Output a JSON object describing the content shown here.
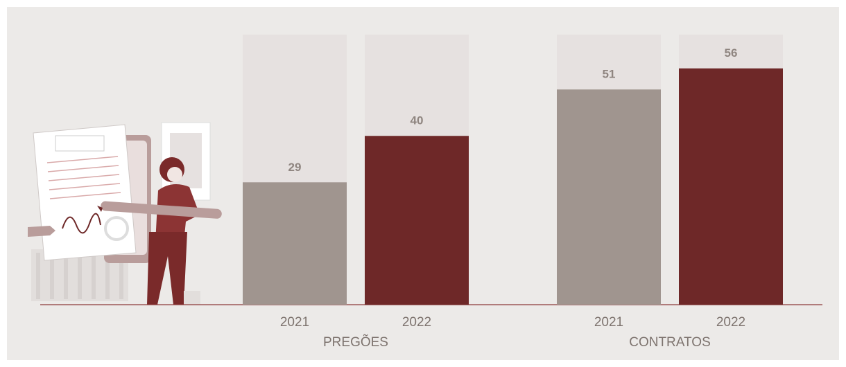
{
  "chart_data": {
    "type": "bar",
    "ylim": [
      0,
      64
    ],
    "colors": [
      "#a0958f",
      "#6e2828"
    ],
    "background_color": "#e6e1e0",
    "groups": [
      {
        "name": "PREGÕES",
        "categories": [
          "2021",
          "2022"
        ],
        "values": [
          29,
          40
        ]
      },
      {
        "name": "CONTRATOS",
        "categories": [
          "2021",
          "2022"
        ],
        "values": [
          51,
          56
        ]
      }
    ]
  }
}
